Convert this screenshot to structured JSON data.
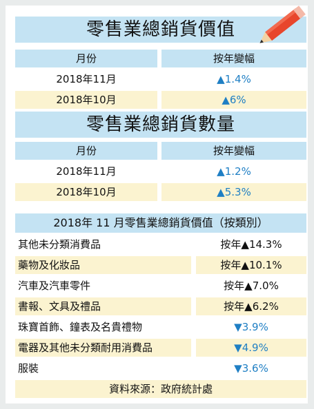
{
  "table1": {
    "title": "零售業總銷貨價值",
    "headers": [
      "月份",
      "按年變幅"
    ],
    "rows": [
      {
        "month": "2018年11月",
        "change": "▲1.4%"
      },
      {
        "month": "2018年10月",
        "change": "▲6%"
      }
    ]
  },
  "table2": {
    "title": "零售業總銷貨數量",
    "headers": [
      "月份",
      "按年變幅"
    ],
    "rows": [
      {
        "month": "2018年11月",
        "change": "▲1.2%"
      },
      {
        "month": "2018年10月",
        "change": "▲5.3%"
      }
    ]
  },
  "table3": {
    "title": "2018年 11 月零售業總銷貨價值（按類別）",
    "rows": [
      {
        "category": "其他未分類消費品",
        "change": "按年▲14.3%"
      },
      {
        "category": "藥物及化妝品",
        "change": "按年▲10.1%"
      },
      {
        "category": "汽車及汽車零件",
        "change": "按年▲7.0%"
      },
      {
        "category": "書報、文具及禮品",
        "change": "按年▲6.2%"
      },
      {
        "category": "珠寶首飾、鐘表及名貴禮物",
        "change": "▼3.9%"
      },
      {
        "category": "電器及其他未分類耐用消費品",
        "change": "▼4.9%"
      },
      {
        "category": "服裝",
        "change": "▼3.6%"
      }
    ]
  },
  "source": "資料來源：政府統計處",
  "colors": {
    "header_bg": "#c4e3f3",
    "alt_row_bg": "#fbf3d0",
    "arrow": "#1f7fc4",
    "pencil": "#e8462c"
  },
  "icons": {
    "decoration": "pencil-icon"
  }
}
